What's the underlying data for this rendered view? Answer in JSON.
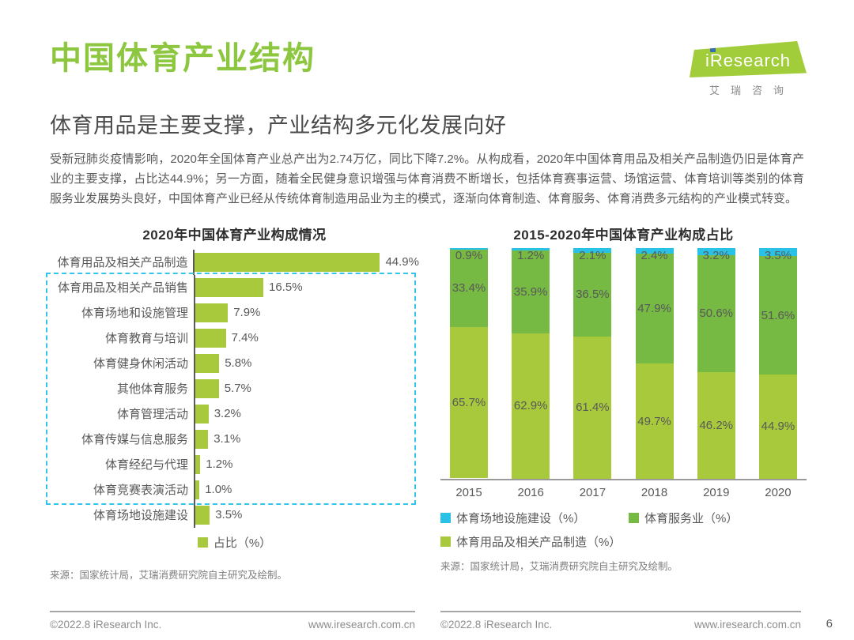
{
  "page": {
    "title": "中国体育产业结构",
    "subtitle": "体育用品是主要支撑，产业结构多元化发展向好",
    "body": "受新冠肺炎疫情影响，2020年全国体育产业总产出为2.74万亿，同比下降7.2%。从构成看，2020年中国体育用品及相关产品制造仍旧是体育产业的主要支撑，占比达44.9%；另一方面，随着全民健身意识增强与体育消费不断增长，包括体育赛事运营、场馆运营、体育培训等类别的体育服务业发展势头良好，中国体育产业已经从传统体育制造用品业为主的模式，逐渐向体育制造、体育服务、体育消费多元结构的产业模式转变。",
    "page_number": "6"
  },
  "logo": {
    "brand": "iResearch",
    "caption": "艾瑞咨询"
  },
  "colors": {
    "brand_green": "#8dc63f",
    "bar_yellow_green": "#a9c93c",
    "service_green": "#76b943",
    "cyan": "#29c1e5",
    "dashed_border": "#35c4ea",
    "label_gray": "#595959"
  },
  "footer": {
    "source": "来源：国家统计局，艾瑞消费研究院自主研究及绘制。",
    "copyright": "©2022.8 iResearch Inc.",
    "website": "www.iresearch.com.cn"
  },
  "chart_data": [
    {
      "type": "bar",
      "orientation": "horizontal",
      "title": "2020年中国体育产业构成情况",
      "categories": [
        "体育用品及相关产品制造",
        "体育用品及相关产品销售",
        "体育场地和设施管理",
        "体育教育与培训",
        "体育健身休闲活动",
        "其他体育服务",
        "体育管理活动",
        "体育传媒与信息服务",
        "体育经纪与代理",
        "体育竞赛表演活动",
        "体育场地设施建设"
      ],
      "values": [
        44.9,
        16.5,
        7.9,
        7.4,
        5.8,
        5.7,
        3.2,
        3.1,
        1.2,
        1.0,
        3.5
      ],
      "unit": "%",
      "xlim": [
        0,
        50
      ],
      "legend": [
        "占比（%）"
      ],
      "legend_position": "bottom",
      "grid": false,
      "highlight_box_rows": [
        1,
        9
      ],
      "highlight_box_color": "#35c4ea"
    },
    {
      "type": "bar",
      "stacked": true,
      "title": "2015-2020年中国体育产业构成占比",
      "categories": [
        "2015",
        "2016",
        "2017",
        "2018",
        "2019",
        "2020"
      ],
      "series": [
        {
          "name": "体育场地设施建设（%）",
          "color": "#29c1e5",
          "values": [
            0.9,
            1.2,
            2.1,
            2.4,
            3.2,
            3.5
          ]
        },
        {
          "name": "体育服务业（%）",
          "color": "#76b943",
          "values": [
            33.4,
            35.9,
            36.5,
            47.9,
            50.6,
            51.6
          ]
        },
        {
          "name": "体育用品及相关产品制造（%）",
          "color": "#a9c93c",
          "values": [
            65.7,
            62.9,
            61.4,
            49.7,
            46.2,
            44.9
          ]
        }
      ],
      "ylim": [
        0,
        100
      ],
      "grid": false,
      "legend_position": "bottom"
    }
  ]
}
